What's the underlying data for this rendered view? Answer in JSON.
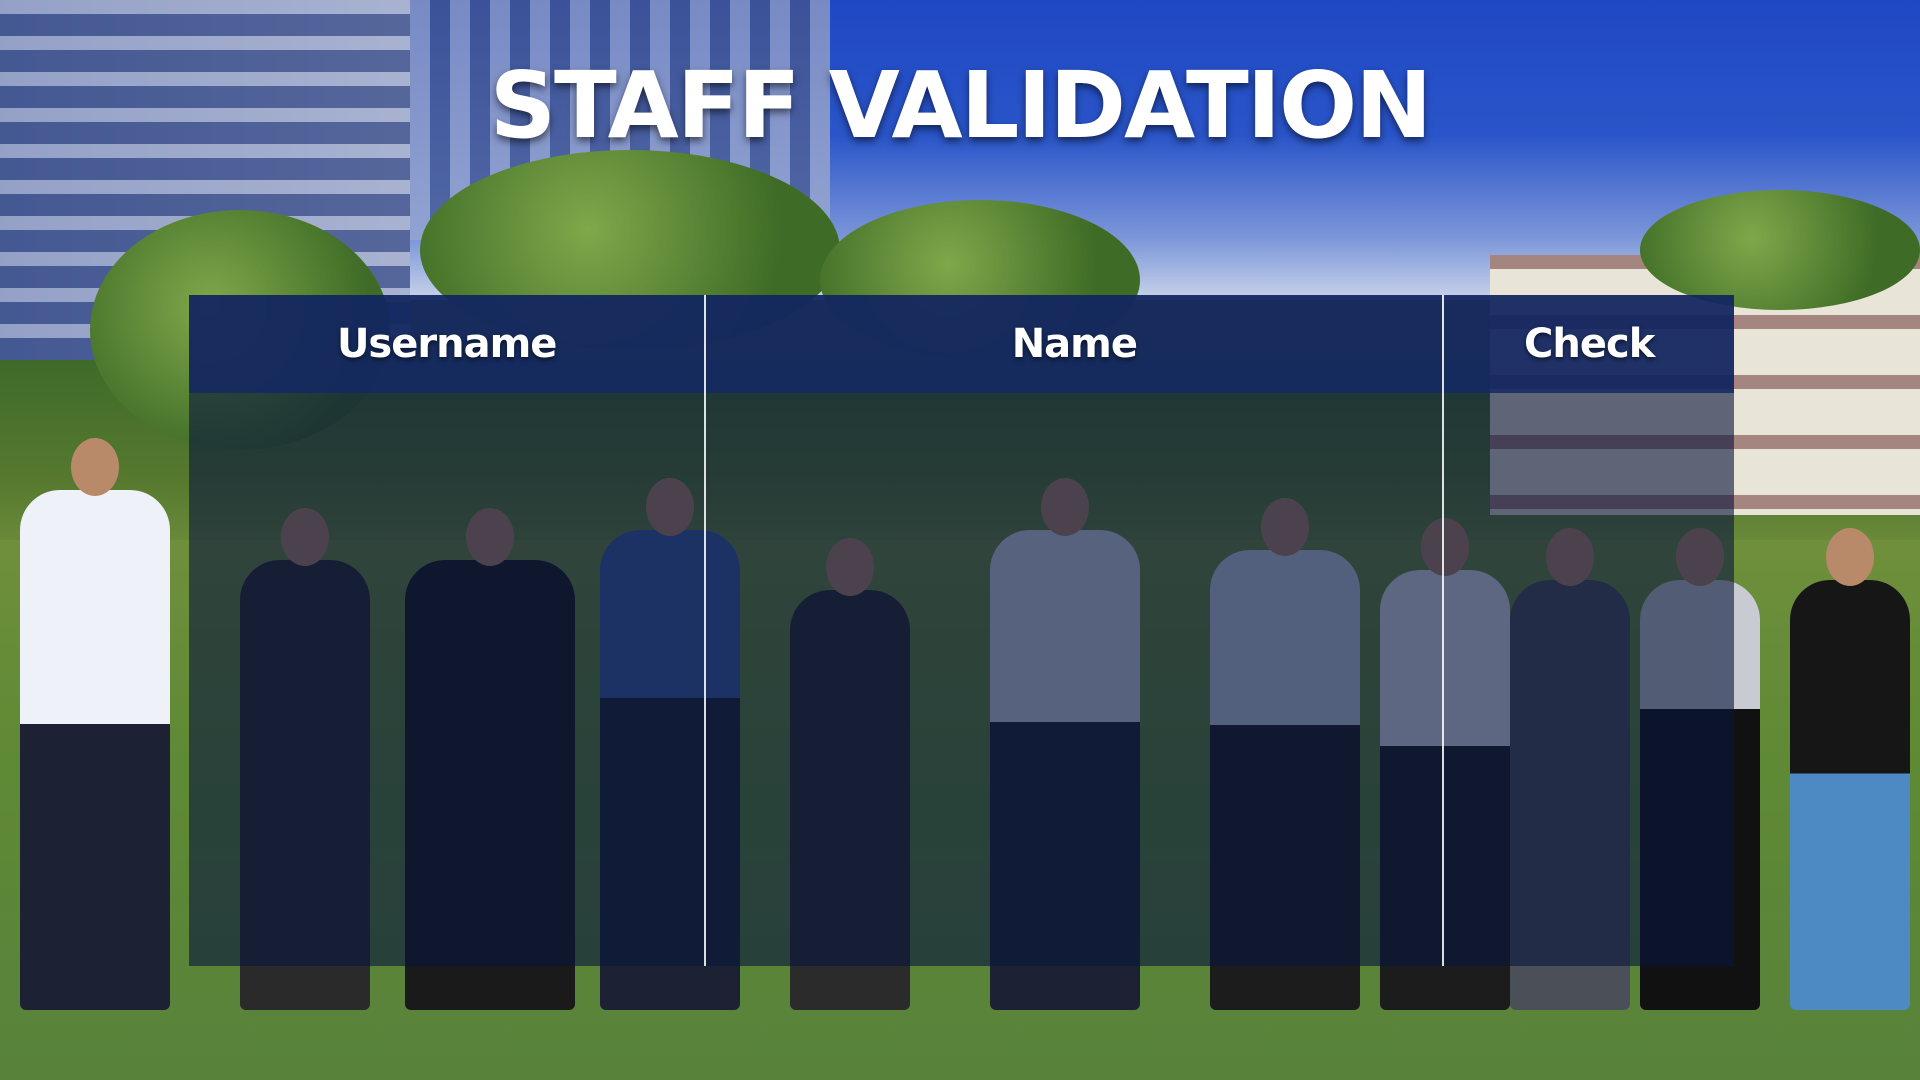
{
  "page": {
    "title": "STAFF VALIDATION"
  },
  "table": {
    "columns": [
      {
        "key": "username",
        "label": "Username"
      },
      {
        "key": "name",
        "label": "Name"
      },
      {
        "key": "check",
        "label": "Check"
      }
    ],
    "rows": []
  },
  "colors": {
    "title_text": "#ffffff",
    "overlay": "#0a163c",
    "header_overlay": "#142864",
    "sky": "#1f48c4"
  },
  "background": {
    "description": "campus lawn photo"
  }
}
